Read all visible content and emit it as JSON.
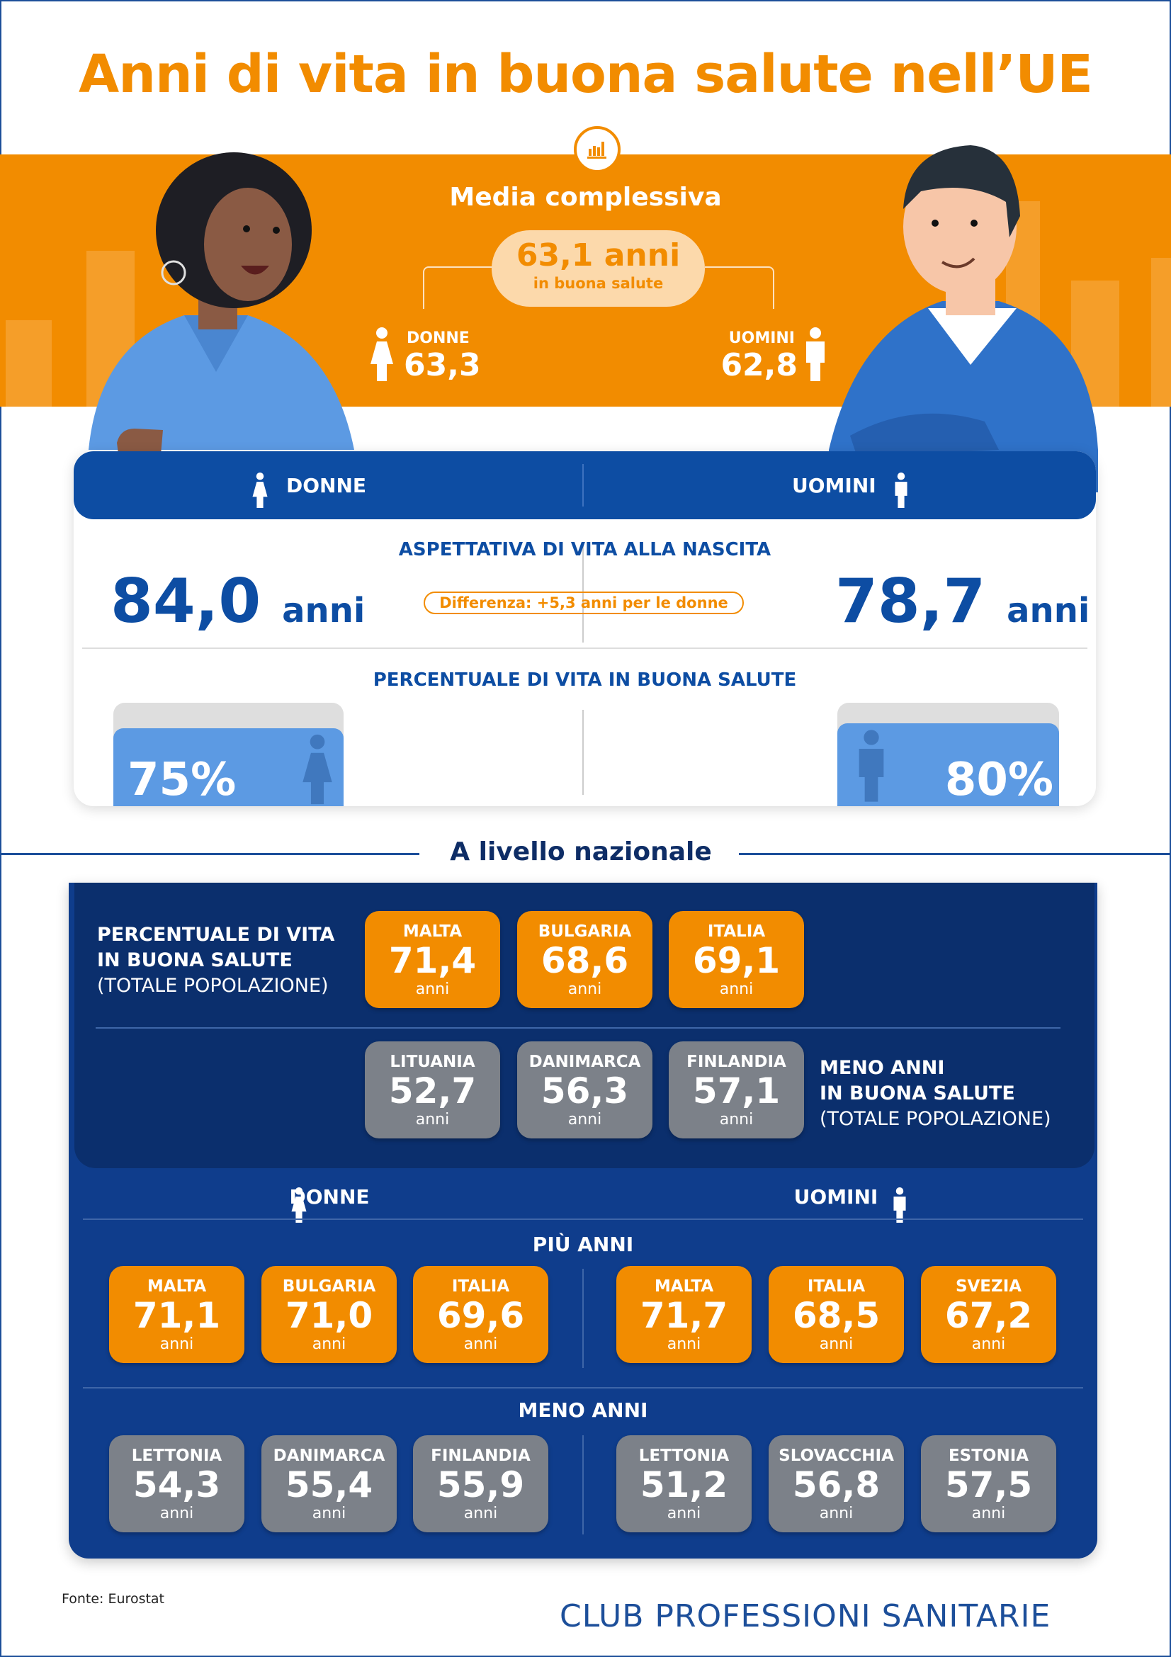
{
  "title": "Anni di vita in buona salute nell’UE",
  "colors": {
    "orange": "#f28c00",
    "blue": "#0d4da3",
    "navy": "#0b2f6d",
    "gray": "#7c8189"
  },
  "overall": {
    "icon": "bar-chart-icon",
    "label": "Media complessiva",
    "value": "63,1 anni",
    "value_sub": "in buona salute",
    "women_label": "DONNE",
    "women_value": "63,3",
    "men_label": "UOMINI",
    "men_value": "62,8"
  },
  "card": {
    "women_header": "DONNE",
    "men_header": "UOMINI",
    "life_expectancy_title": "ASPETTATIVA DI VITA ALLA NASCITA",
    "women_life": "84,0",
    "men_life": "78,7",
    "unit": "anni",
    "difference": "Differenza: +5,3 anni per le donne",
    "healthy_pct_title": "PERCENTUALE DI VITA IN BUONA SALUTE",
    "women_pct": "75%",
    "men_pct": "80%",
    "women_pct_value": 75,
    "men_pct_value": 80
  },
  "national": {
    "title": "A livello nazionale",
    "most_label_1": "PERCENTUALE DI VITA",
    "most_label_2": "IN BUONA SALUTE",
    "most_label_3": "(TOTALE POPOLAZIONE)",
    "least_label_1": "MENO ANNI",
    "least_label_2": "IN BUONA SALUTE",
    "least_label_3": "(TOTALE POPOLAZIONE)",
    "total_most": [
      {
        "country": "MALTA",
        "value": "71,4",
        "unit": "anni"
      },
      {
        "country": "BULGARIA",
        "value": "68,6",
        "unit": "anni"
      },
      {
        "country": "ITALIA",
        "value": "69,1",
        "unit": "anni"
      }
    ],
    "total_least": [
      {
        "country": "LITUANIA",
        "value": "52,7",
        "unit": "anni"
      },
      {
        "country": "DANIMARCA",
        "value": "56,3",
        "unit": "anni"
      },
      {
        "country": "FINLANDIA",
        "value": "57,1",
        "unit": "anni"
      }
    ],
    "women_label": "DONNE",
    "men_label": "UOMINI",
    "more_title": "PIÙ ANNI",
    "less_title": "MENO ANNI",
    "women_more": [
      {
        "country": "MALTA",
        "value": "71,1",
        "unit": "anni"
      },
      {
        "country": "BULGARIA",
        "value": "71,0",
        "unit": "anni"
      },
      {
        "country": "ITALIA",
        "value": "69,6",
        "unit": "anni"
      }
    ],
    "men_more": [
      {
        "country": "MALTA",
        "value": "71,7",
        "unit": "anni"
      },
      {
        "country": "ITALIA",
        "value": "68,5",
        "unit": "anni"
      },
      {
        "country": "SVEZIA",
        "value": "67,2",
        "unit": "anni"
      }
    ],
    "women_less": [
      {
        "country": "LETTONIA",
        "value": "54,3",
        "unit": "anni"
      },
      {
        "country": "DANIMARCA",
        "value": "55,4",
        "unit": "anni"
      },
      {
        "country": "FINLANDIA",
        "value": "55,9",
        "unit": "anni"
      }
    ],
    "men_less": [
      {
        "country": "LETTONIA",
        "value": "51,2",
        "unit": "anni"
      },
      {
        "country": "SLOVACCHIA",
        "value": "56,8",
        "unit": "anni"
      },
      {
        "country": "ESTONIA",
        "value": "57,5",
        "unit": "anni"
      }
    ]
  },
  "footer": {
    "source": "Fonte: Eurostat",
    "logo": "CLUB PROFESSIONI SANITARIE"
  }
}
